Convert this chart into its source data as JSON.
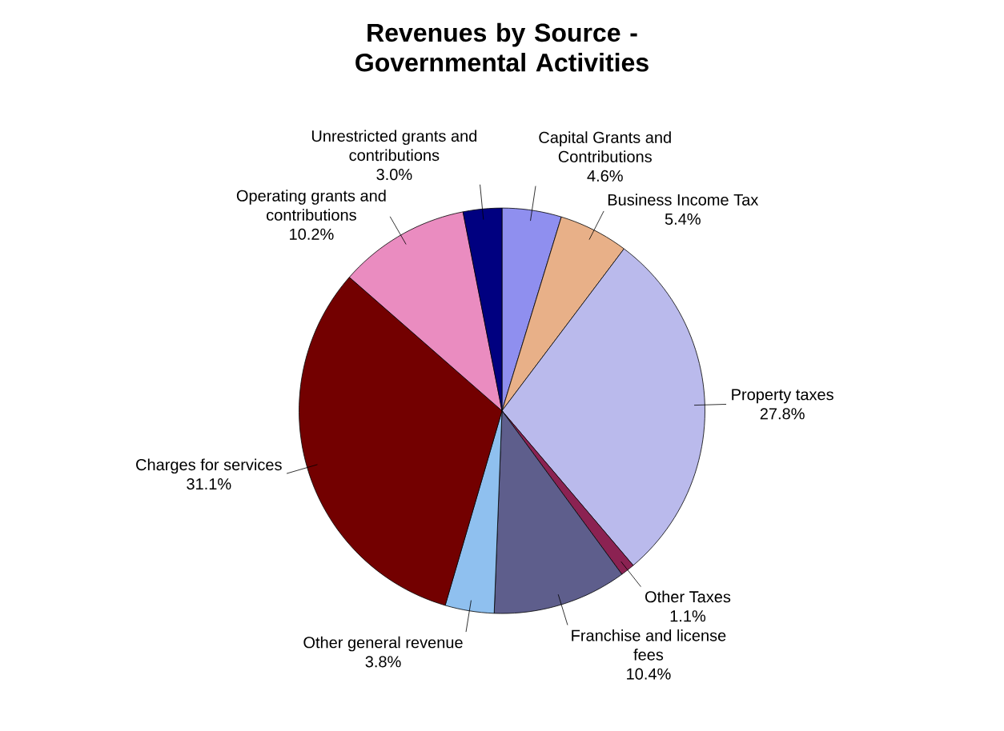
{
  "chart_data": {
    "type": "pie",
    "title": "Revenues by Source - Governmental Activities",
    "categories": [
      "Capital Grants and Contributions",
      "Business Income Tax",
      "Property taxes",
      "Other Taxes",
      "Franchise and license fees",
      "Other general revenue",
      "Charges for services",
      "Operating grants and contributions",
      "Unrestricted grants and contributions"
    ],
    "values": [
      4.6,
      5.4,
      27.8,
      1.1,
      10.4,
      3.8,
      31.1,
      10.2,
      3.0
    ],
    "value_labels": [
      "4.6%",
      "5.4%",
      "27.8%",
      "1.1%",
      "10.4%",
      "3.8%",
      "31.1%",
      "10.2%",
      "3.0%"
    ],
    "colors": [
      "#8f8fef",
      "#e8b088",
      "#babaec",
      "#8b2252",
      "#5e5e8c",
      "#8fc0ef",
      "#730000",
      "#ea8cc0",
      "#000080"
    ]
  }
}
